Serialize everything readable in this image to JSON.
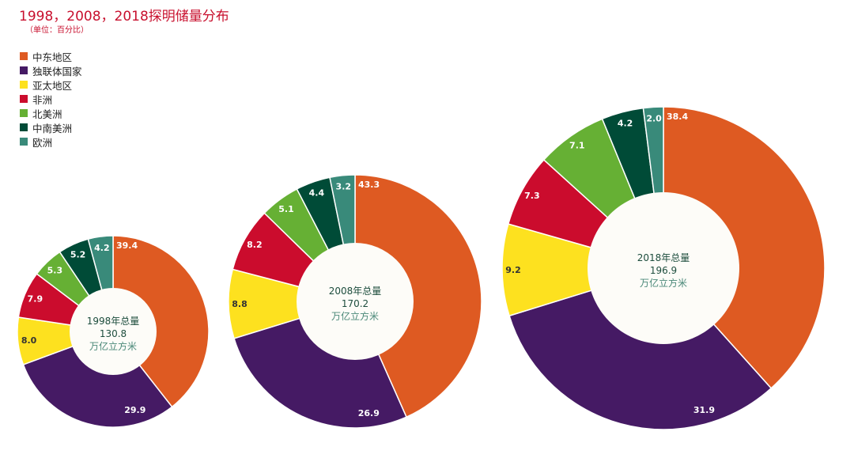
{
  "title": "1998，2008，2018探明储量分布",
  "subtitle": "（单位：百分比）",
  "colors": [
    "#de5a22",
    "#451a64",
    "#fde11f",
    "#cb0c2d",
    "#66b034",
    "#004b37",
    "#398a7a"
  ],
  "chart_data": {
    "type": "pie",
    "categories": [
      "中东地区",
      "独联体国家",
      "亚太地区",
      "非洲",
      "北美洲",
      "中南美洲",
      "欧洲"
    ],
    "legend_position": "top-left",
    "charts": [
      {
        "values": [
          39.4,
          29.9,
          8.0,
          7.9,
          5.3,
          5.2,
          4.2
        ],
        "labels": [
          "39.4",
          "29.9",
          "8.0",
          "7.9",
          "5.3",
          "5.2",
          "4.2"
        ],
        "center_title": "1998年总量",
        "center_value": "130.8",
        "center_unit": "万亿立方米"
      },
      {
        "values": [
          43.3,
          26.9,
          8.8,
          8.2,
          5.1,
          4.4,
          3.2
        ],
        "labels": [
          "43.3",
          "26.9",
          "8.8",
          "8.2",
          "5.1",
          "4.4",
          "3.2"
        ],
        "center_title": "2008年总量",
        "center_value": "170.2",
        "center_unit": "万亿立方米"
      },
      {
        "values": [
          38.4,
          31.9,
          9.2,
          7.3,
          7.1,
          4.2,
          2.0
        ],
        "labels": [
          "38.4",
          "31.9",
          "9.2",
          "7.3",
          "7.1",
          "4.2",
          "2.0"
        ],
        "center_title": "2018年总量",
        "center_value": "196.9",
        "center_unit": "万亿立方米"
      }
    ]
  }
}
